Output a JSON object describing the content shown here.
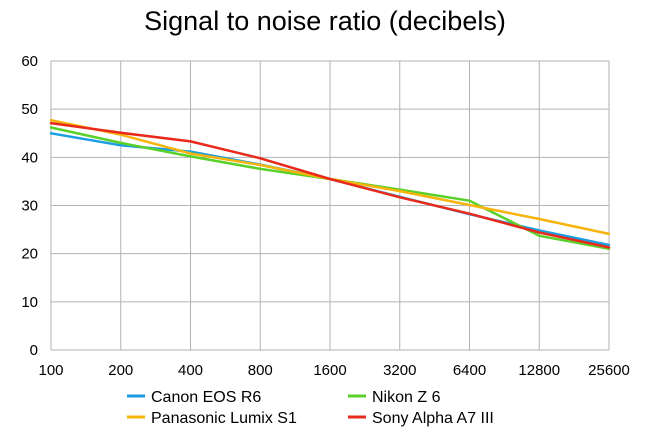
{
  "chart_data": {
    "type": "line",
    "title": "Signal to noise ratio (decibels)",
    "xlabel": "",
    "ylabel": "",
    "categories": [
      "100",
      "200",
      "400",
      "800",
      "1600",
      "3200",
      "6400",
      "12800",
      "25600"
    ],
    "ylim": [
      0,
      60
    ],
    "yticks": [
      0,
      10,
      20,
      30,
      40,
      50,
      60
    ],
    "grid": true,
    "legend_position": "bottom",
    "series": [
      {
        "name": "Canon EOS R6",
        "color": "#1a9ee3",
        "values": [
          45.0,
          42.5,
          41.2,
          38.5,
          35.5,
          31.8,
          28.2,
          24.8,
          21.8
        ]
      },
      {
        "name": "Nikon Z 6",
        "color": "#5ad12a",
        "values": [
          46.2,
          43.0,
          40.2,
          37.6,
          35.5,
          33.3,
          31.0,
          23.7,
          21.0
        ]
      },
      {
        "name": "Panasonic Lumix S1",
        "color": "#f6b40c",
        "values": [
          47.7,
          44.7,
          40.8,
          38.4,
          35.5,
          33.0,
          30.1,
          27.2,
          24.1
        ]
      },
      {
        "name": "Sony Alpha A7 III",
        "color": "#e8291c",
        "values": [
          47.1,
          45.1,
          43.3,
          39.8,
          35.5,
          31.7,
          28.3,
          24.4,
          21.3
        ]
      }
    ]
  }
}
